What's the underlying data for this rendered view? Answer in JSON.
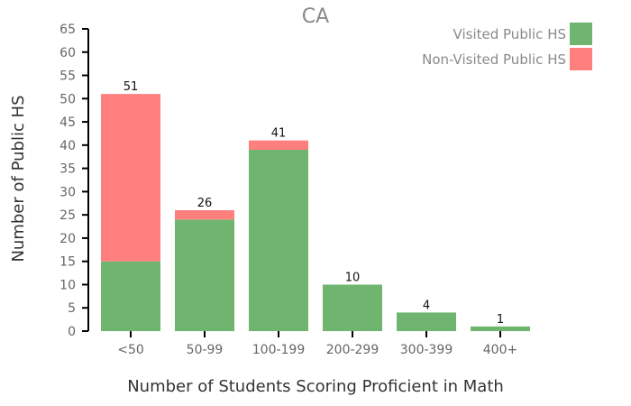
{
  "chart_data": {
    "type": "bar",
    "title": "CA",
    "xlabel": "Number of Students Scoring Proficient in Math",
    "ylabel": "Number of Public HS",
    "categories": [
      "<50",
      "50-99",
      "100-199",
      "200-299",
      "300-399",
      "400+"
    ],
    "series": [
      {
        "name": "Visited Public HS",
        "color": "#70b56f",
        "values": [
          15,
          24,
          39,
          10,
          4,
          1
        ]
      },
      {
        "name": "Non-Visited Public HS",
        "color": "#ff7f7f",
        "values": [
          36,
          2,
          2,
          0,
          0,
          0
        ]
      }
    ],
    "totals": [
      51,
      26,
      41,
      10,
      4,
      1
    ],
    "ylim": [
      0,
      65
    ],
    "yticks": [
      0,
      5,
      10,
      15,
      20,
      25,
      30,
      35,
      40,
      45,
      50,
      55,
      60,
      65
    ],
    "grid": false,
    "legend": "top-right",
    "stacked": true
  }
}
